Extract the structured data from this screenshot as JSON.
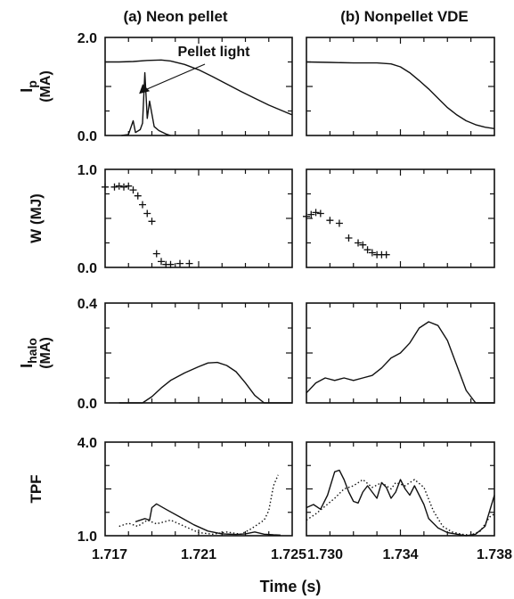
{
  "chart_data": {
    "type": "line",
    "columns": [
      {
        "title": "(a) Neon pellet",
        "xlim": [
          1.717,
          1.725
        ],
        "xticks": [
          "1.717",
          "1.721",
          "1.725"
        ]
      },
      {
        "title": "(b) Nonpellet VDE",
        "xlim": [
          1.73,
          1.738
        ],
        "xticks": [
          "1.730",
          "1.734",
          "1.738"
        ]
      }
    ],
    "xlabel": "Time (s)",
    "rows": [
      {
        "key": "ip",
        "ylabel_main": "I",
        "ylabel_sub": "p",
        "ylabel_unit": "(MA)",
        "ylim": [
          0.0,
          2.0
        ],
        "yticks": [
          "0.0",
          "2.0"
        ]
      },
      {
        "key": "w",
        "ylabel_main": "W (MJ)",
        "ylim": [
          0.0,
          1.0
        ],
        "yticks": [
          "0.0",
          "1.0"
        ]
      },
      {
        "key": "halo",
        "ylabel_main": "I",
        "ylabel_sub": "halo",
        "ylabel_unit": "(MA)",
        "ylim": [
          0.0,
          0.4
        ],
        "yticks": [
          "0.0",
          "0.4"
        ]
      },
      {
        "key": "tpf",
        "ylabel_main": "TPF",
        "ylim": [
          1.0,
          4.0
        ],
        "yticks": [
          "1.0",
          "4.0"
        ]
      }
    ],
    "annotations": [
      {
        "text": "Pellet light",
        "panel": "ip-0",
        "x": 1.7183,
        "y": 0.85
      }
    ],
    "panels": [
      {
        "row": 0,
        "col": 0,
        "series": [
          {
            "style": "solid",
            "points": [
              [
                1.717,
                1.5
              ],
              [
                1.7176,
                1.5
              ],
              [
                1.7182,
                1.51
              ],
              [
                1.7188,
                1.53
              ],
              [
                1.7194,
                1.54
              ],
              [
                1.7198,
                1.52
              ],
              [
                1.7204,
                1.45
              ],
              [
                1.721,
                1.34
              ],
              [
                1.7216,
                1.2
              ],
              [
                1.7222,
                1.05
              ],
              [
                1.7228,
                0.9
              ],
              [
                1.7234,
                0.76
              ],
              [
                1.724,
                0.62
              ],
              [
                1.7246,
                0.5
              ],
              [
                1.725,
                0.42
              ]
            ]
          },
          {
            "style": "solid",
            "points": [
              [
                1.7177,
                0.0
              ],
              [
                1.718,
                0.02
              ],
              [
                1.7182,
                0.3
              ],
              [
                1.7183,
                0.06
              ],
              [
                1.7185,
                0.12
              ],
              [
                1.7186,
                0.25
              ],
              [
                1.7187,
                1.28
              ],
              [
                1.7188,
                0.35
              ],
              [
                1.7189,
                0.7
              ],
              [
                1.7191,
                0.18
              ],
              [
                1.7193,
                0.1
              ],
              [
                1.7196,
                0.03
              ],
              [
                1.7198,
                0.0
              ]
            ]
          }
        ]
      },
      {
        "row": 0,
        "col": 1,
        "series": [
          {
            "style": "solid",
            "points": [
              [
                1.73,
                1.5
              ],
              [
                1.731,
                1.49
              ],
              [
                1.732,
                1.48
              ],
              [
                1.733,
                1.48
              ],
              [
                1.7336,
                1.46
              ],
              [
                1.734,
                1.4
              ],
              [
                1.7344,
                1.28
              ],
              [
                1.7348,
                1.12
              ],
              [
                1.7352,
                0.95
              ],
              [
                1.7356,
                0.76
              ],
              [
                1.736,
                0.57
              ],
              [
                1.7364,
                0.42
              ],
              [
                1.7368,
                0.3
              ],
              [
                1.7372,
                0.22
              ],
              [
                1.7376,
                0.17
              ],
              [
                1.738,
                0.14
              ]
            ]
          }
        ]
      },
      {
        "row": 1,
        "col": 0,
        "series": [
          {
            "style": "plus",
            "points": [
              [
                1.717,
                0.82
              ],
              [
                1.7174,
                0.82
              ],
              [
                1.7176,
                0.83
              ],
              [
                1.7178,
                0.82
              ],
              [
                1.718,
                0.83
              ],
              [
                1.7182,
                0.79
              ],
              [
                1.7184,
                0.73
              ],
              [
                1.7186,
                0.64
              ],
              [
                1.7188,
                0.55
              ],
              [
                1.719,
                0.47
              ],
              [
                1.7192,
                0.14
              ],
              [
                1.7194,
                0.06
              ],
              [
                1.7196,
                0.03
              ],
              [
                1.7198,
                0.03
              ],
              [
                1.7202,
                0.04
              ],
              [
                1.7206,
                0.04
              ]
            ]
          }
        ]
      },
      {
        "row": 1,
        "col": 1,
        "series": [
          {
            "style": "plus",
            "points": [
              [
                1.73,
                0.52
              ],
              [
                1.7302,
                0.54
              ],
              [
                1.7304,
                0.56
              ],
              [
                1.7306,
                0.55
              ],
              [
                1.731,
                0.48
              ],
              [
                1.7314,
                0.45
              ],
              [
                1.7318,
                0.3
              ],
              [
                1.7322,
                0.25
              ],
              [
                1.7324,
                0.23
              ],
              [
                1.7326,
                0.18
              ],
              [
                1.7328,
                0.15
              ],
              [
                1.733,
                0.13
              ],
              [
                1.7332,
                0.13
              ],
              [
                1.7334,
                0.13
              ]
            ]
          }
        ]
      },
      {
        "row": 2,
        "col": 0,
        "series": [
          {
            "style": "solid",
            "points": [
              [
                1.7176,
                0.0
              ],
              [
                1.7186,
                0.0
              ],
              [
                1.719,
                0.025
              ],
              [
                1.7194,
                0.06
              ],
              [
                1.7198,
                0.09
              ],
              [
                1.7204,
                0.12
              ],
              [
                1.721,
                0.145
              ],
              [
                1.7214,
                0.16
              ],
              [
                1.7218,
                0.162
              ],
              [
                1.7222,
                0.15
              ],
              [
                1.7226,
                0.125
              ],
              [
                1.723,
                0.08
              ],
              [
                1.7234,
                0.03
              ],
              [
                1.7238,
                0.0
              ],
              [
                1.725,
                0.0
              ]
            ]
          }
        ]
      },
      {
        "row": 2,
        "col": 1,
        "series": [
          {
            "style": "solid",
            "points": [
              [
                1.73,
                0.04
              ],
              [
                1.7304,
                0.08
              ],
              [
                1.7308,
                0.1
              ],
              [
                1.7312,
                0.09
              ],
              [
                1.7316,
                0.1
              ],
              [
                1.732,
                0.09
              ],
              [
                1.7324,
                0.1
              ],
              [
                1.7328,
                0.11
              ],
              [
                1.7332,
                0.14
              ],
              [
                1.7336,
                0.18
              ],
              [
                1.734,
                0.2
              ],
              [
                1.7344,
                0.24
              ],
              [
                1.7348,
                0.3
              ],
              [
                1.7352,
                0.325
              ],
              [
                1.7356,
                0.31
              ],
              [
                1.736,
                0.25
              ],
              [
                1.7364,
                0.15
              ],
              [
                1.7368,
                0.05
              ],
              [
                1.7372,
                0.0
              ],
              [
                1.738,
                0.0
              ]
            ]
          }
        ]
      },
      {
        "row": 3,
        "col": 0,
        "series": [
          {
            "style": "solid",
            "points": [
              [
                1.7183,
                1.45
              ],
              [
                1.7187,
                1.55
              ],
              [
                1.7189,
                1.5
              ],
              [
                1.719,
                1.9
              ],
              [
                1.7192,
                2.02
              ],
              [
                1.7196,
                1.85
              ],
              [
                1.7202,
                1.6
              ],
              [
                1.7208,
                1.35
              ],
              [
                1.7214,
                1.15
              ],
              [
                1.722,
                1.06
              ],
              [
                1.7226,
                1.04
              ],
              [
                1.723,
                1.06
              ],
              [
                1.7234,
                1.12
              ],
              [
                1.7238,
                1.05
              ],
              [
                1.7242,
                1.03
              ],
              [
                1.7245,
                1.02
              ]
            ]
          },
          {
            "style": "dotted",
            "points": [
              [
                1.7176,
                1.3
              ],
              [
                1.718,
                1.4
              ],
              [
                1.7184,
                1.3
              ],
              [
                1.7188,
                1.5
              ],
              [
                1.7192,
                1.38
              ],
              [
                1.7198,
                1.5
              ],
              [
                1.7204,
                1.3
              ],
              [
                1.721,
                1.1
              ],
              [
                1.7216,
                1.05
              ],
              [
                1.7222,
                1.12
              ],
              [
                1.7228,
                1.05
              ],
              [
                1.7232,
                1.2
              ],
              [
                1.7235,
                1.35
              ],
              [
                1.7238,
                1.5
              ],
              [
                1.724,
                1.8
              ],
              [
                1.7242,
                2.6
              ],
              [
                1.7244,
                2.95
              ]
            ]
          }
        ]
      },
      {
        "row": 3,
        "col": 1,
        "series": [
          {
            "style": "solid",
            "points": [
              [
                1.73,
                1.9
              ],
              [
                1.7303,
                2.0
              ],
              [
                1.7306,
                1.85
              ],
              [
                1.7309,
                2.3
              ],
              [
                1.7312,
                3.05
              ],
              [
                1.7314,
                3.1
              ],
              [
                1.7316,
                2.8
              ],
              [
                1.7318,
                2.4
              ],
              [
                1.732,
                2.1
              ],
              [
                1.7322,
                2.05
              ],
              [
                1.7324,
                2.4
              ],
              [
                1.7326,
                2.6
              ],
              [
                1.7328,
                2.4
              ],
              [
                1.733,
                2.2
              ],
              [
                1.7332,
                2.7
              ],
              [
                1.7334,
                2.55
              ],
              [
                1.7336,
                2.2
              ],
              [
                1.7338,
                2.4
              ],
              [
                1.734,
                2.8
              ],
              [
                1.7342,
                2.5
              ],
              [
                1.7344,
                2.3
              ],
              [
                1.7346,
                2.6
              ],
              [
                1.7348,
                2.3
              ],
              [
                1.735,
                2.0
              ],
              [
                1.7352,
                1.55
              ],
              [
                1.7356,
                1.25
              ],
              [
                1.736,
                1.1
              ],
              [
                1.7364,
                1.05
              ],
              [
                1.7368,
                1.0
              ],
              [
                1.7372,
                1.05
              ],
              [
                1.7376,
                1.3
              ],
              [
                1.738,
                2.3
              ]
            ]
          },
          {
            "style": "dotted",
            "points": [
              [
                1.73,
                1.5
              ],
              [
                1.7304,
                1.7
              ],
              [
                1.7308,
                1.95
              ],
              [
                1.7312,
                2.2
              ],
              [
                1.7316,
                2.5
              ],
              [
                1.732,
                2.6
              ],
              [
                1.7324,
                2.8
              ],
              [
                1.7328,
                2.55
              ],
              [
                1.7332,
                2.7
              ],
              [
                1.7336,
                2.5
              ],
              [
                1.7338,
                2.7
              ],
              [
                1.7342,
                2.6
              ],
              [
                1.7346,
                2.8
              ],
              [
                1.735,
                2.55
              ],
              [
                1.7354,
                1.8
              ],
              [
                1.7358,
                1.3
              ],
              [
                1.7362,
                1.12
              ],
              [
                1.7366,
                1.05
              ],
              [
                1.737,
                1.02
              ],
              [
                1.7374,
                1.15
              ],
              [
                1.7378,
                1.6
              ],
              [
                1.738,
                1.7
              ]
            ]
          }
        ]
      }
    ]
  }
}
